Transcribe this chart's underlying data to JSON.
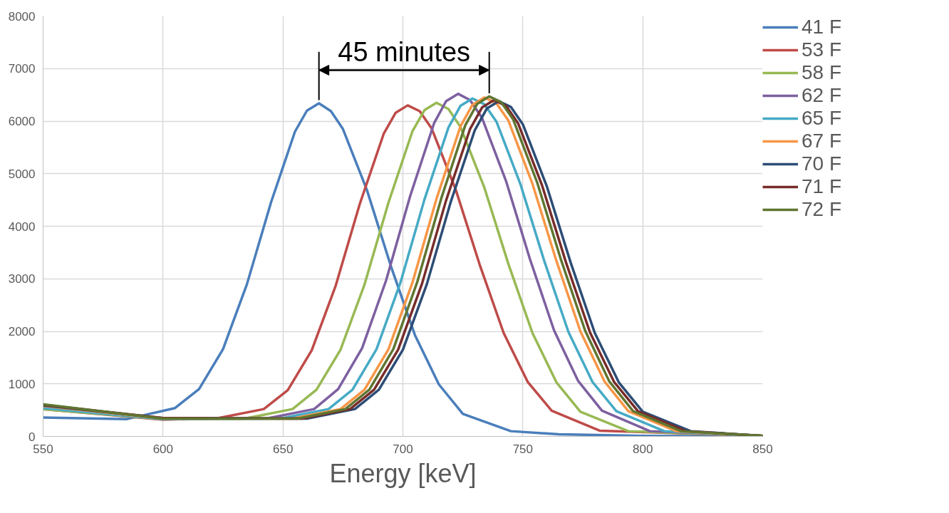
{
  "chart_data": {
    "type": "line",
    "xlabel": "Energy [keV]",
    "xlim": [
      550,
      850
    ],
    "ylim": [
      0,
      8000
    ],
    "xticks": [
      550,
      600,
      650,
      700,
      750,
      800,
      850
    ],
    "yticks": [
      0,
      1000,
      2000,
      3000,
      4000,
      5000,
      6000,
      7000,
      8000
    ],
    "grid": true,
    "legend": "right",
    "line_style": "solid",
    "marker": "none",
    "annotations": [
      "45 minutes"
    ],
    "series": [
      {
        "name": "41 F",
        "color": "#4a7ebb",
        "x": [
          550,
          585,
          605,
          615,
          625,
          635,
          645,
          655,
          660,
          665,
          670,
          675,
          685,
          695,
          705,
          715,
          725,
          745,
          765,
          800,
          850
        ],
        "values": [
          360,
          330,
          540,
          900,
          1660,
          2900,
          4450,
          5800,
          6200,
          6340,
          6190,
          5850,
          4690,
          3240,
          1930,
          990,
          430,
          100,
          40,
          10,
          0
        ]
      },
      {
        "name": "53 F",
        "color": "#be4b48",
        "x": [
          550,
          600,
          622,
          642,
          652,
          662,
          672,
          682,
          692,
          697,
          702,
          707,
          712,
          722,
          732,
          742,
          752,
          762,
          782,
          850
        ],
        "values": [
          520,
          320,
          340,
          520,
          880,
          1640,
          2870,
          4420,
          5760,
          6160,
          6300,
          6190,
          5860,
          4700,
          3270,
          1970,
          1040,
          490,
          110,
          10
        ]
      },
      {
        "name": "58 F",
        "color": "#98b954",
        "x": [
          550,
          600,
          634,
          654,
          664,
          674,
          684,
          694,
          704,
          709,
          714,
          719,
          724,
          734,
          744,
          754,
          764,
          774,
          794,
          850
        ],
        "values": [
          520,
          330,
          340,
          520,
          890,
          1650,
          2890,
          4450,
          5810,
          6210,
          6350,
          6230,
          5890,
          4730,
          3280,
          1970,
          1030,
          470,
          100,
          10
        ]
      },
      {
        "name": "62 F",
        "color": "#7d60a0",
        "x": [
          550,
          600,
          643,
          663,
          673,
          683,
          693,
          703,
          713,
          718,
          723,
          728,
          733,
          743,
          753,
          763,
          773,
          783,
          803,
          850
        ],
        "values": [
          560,
          340,
          340,
          520,
          900,
          1680,
          2970,
          4570,
          5960,
          6380,
          6520,
          6400,
          6060,
          4860,
          3370,
          2020,
          1060,
          490,
          100,
          10
        ]
      },
      {
        "name": "65 F",
        "color": "#46aac5",
        "x": [
          550,
          600,
          649,
          669,
          679,
          689,
          699,
          709,
          719,
          724,
          729,
          734,
          739,
          749,
          759,
          769,
          779,
          789,
          809,
          850
        ],
        "values": [
          540,
          330,
          340,
          520,
          890,
          1660,
          2930,
          4510,
          5880,
          6290,
          6430,
          6320,
          5990,
          4800,
          3330,
          1990,
          1040,
          480,
          100,
          10
        ]
      },
      {
        "name": "67 F",
        "color": "#f79646",
        "x": [
          550,
          600,
          654,
          674,
          684,
          694,
          704,
          714,
          724,
          729,
          734,
          739,
          744,
          754,
          764,
          774,
          784,
          794,
          814,
          850
        ],
        "values": [
          580,
          340,
          340,
          520,
          890,
          1660,
          2930,
          4520,
          5900,
          6310,
          6450,
          6340,
          6010,
          4810,
          3340,
          2000,
          1050,
          480,
          100,
          10
        ]
      },
      {
        "name": "70 F",
        "color": "#2c4d75",
        "x": [
          550,
          600,
          660,
          680,
          690,
          700,
          710,
          720,
          730,
          735,
          740,
          745,
          750,
          760,
          770,
          780,
          790,
          800,
          820,
          850
        ],
        "values": [
          590,
          350,
          340,
          520,
          890,
          1650,
          2900,
          4470,
          5830,
          6240,
          6380,
          6270,
          5940,
          4760,
          3300,
          1970,
          1030,
          470,
          100,
          10
        ]
      },
      {
        "name": "71 F",
        "color": "#772c2a",
        "x": [
          550,
          600,
          658,
          678,
          688,
          698,
          708,
          718,
          728,
          733,
          738,
          743,
          748,
          758,
          768,
          778,
          788,
          798,
          818,
          850
        ],
        "values": [
          600,
          350,
          340,
          520,
          890,
          1650,
          2910,
          4490,
          5850,
          6260,
          6400,
          6290,
          5960,
          4780,
          3310,
          1980,
          1040,
          480,
          100,
          10
        ]
      },
      {
        "name": "72 F",
        "color": "#5f7530",
        "x": [
          550,
          600,
          656,
          676,
          686,
          696,
          706,
          716,
          726,
          731,
          736,
          741,
          746,
          756,
          766,
          776,
          786,
          796,
          816,
          850
        ],
        "values": [
          610,
          340,
          340,
          520,
          890,
          1660,
          2940,
          4530,
          5920,
          6330,
          6470,
          6360,
          6030,
          4830,
          3350,
          2010,
          1050,
          480,
          100,
          10
        ]
      }
    ]
  }
}
